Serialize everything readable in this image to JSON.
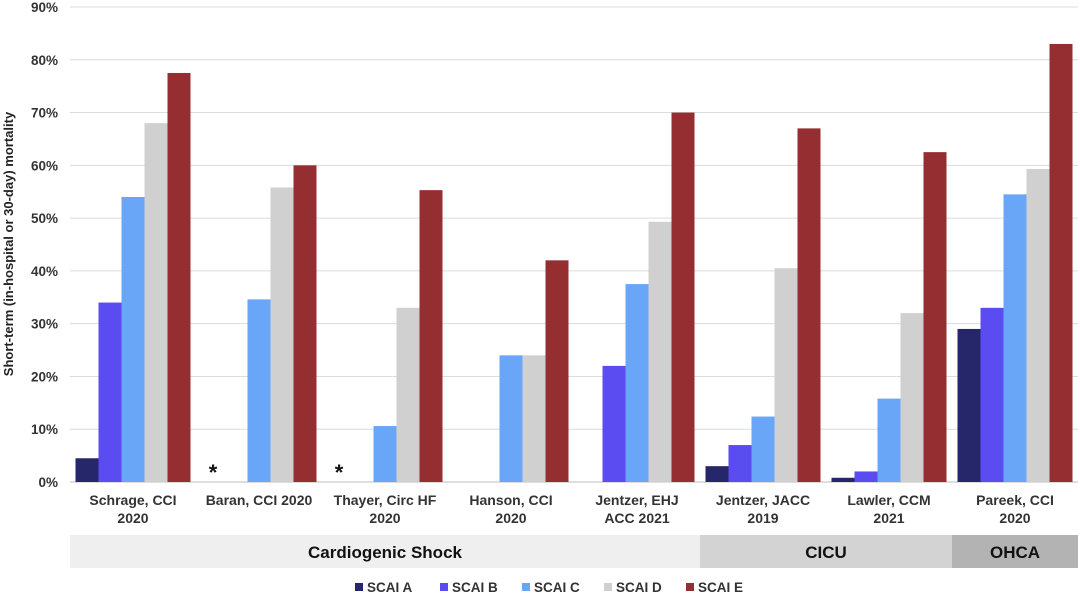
{
  "chart_data": {
    "type": "bar",
    "ylabel": "Short-term (in-hospital or 30-day) mortality",
    "ylim": [
      0,
      90
    ],
    "yticks": [
      "0%",
      "10%",
      "20%",
      "30%",
      "40%",
      "50%",
      "60%",
      "70%",
      "80%",
      "90%"
    ],
    "grid": true,
    "legend_position": "bottom",
    "categories": [
      [
        "Schrage, CCI",
        "2020"
      ],
      [
        "Baran, CCI 2020"
      ],
      [
        "Thayer, Circ HF",
        "2020"
      ],
      [
        "Hanson, CCI",
        "2020"
      ],
      [
        "Jentzer, EHJ",
        "ACC 2021"
      ],
      [
        "Jentzer, JACC",
        "2019"
      ],
      [
        "Lawler, CCM",
        "2021"
      ],
      [
        "Pareek, CCI",
        "2020"
      ]
    ],
    "series": [
      {
        "name": "SCAI A",
        "color": "#26266b",
        "values": [
          4.5,
          null,
          null,
          null,
          null,
          3.0,
          0.8,
          29.0
        ]
      },
      {
        "name": "SCAI B",
        "color": "#5a4cf0",
        "values": [
          34.0,
          null,
          null,
          null,
          22.0,
          7.0,
          2.0,
          33.0
        ]
      },
      {
        "name": "SCAI C",
        "color": "#6aa6f8",
        "values": [
          54.0,
          34.6,
          10.6,
          24.0,
          37.5,
          12.4,
          15.8,
          54.5
        ]
      },
      {
        "name": "SCAI D",
        "color": "#d0d0d0",
        "values": [
          68.0,
          55.8,
          33.0,
          24.0,
          49.3,
          40.5,
          32.0,
          59.3
        ]
      },
      {
        "name": "SCAI E",
        "color": "#952e30",
        "values": [
          77.5,
          60.0,
          55.3,
          42.0,
          70.0,
          67.0,
          62.5,
          83.0
        ]
      }
    ],
    "annotations": [
      {
        "text": "*",
        "category_index": 1
      },
      {
        "text": "*",
        "category_index": 2
      }
    ],
    "groups": [
      {
        "label": "Cardiogenic Shock",
        "from": 0,
        "to": 4,
        "color": "#efefef"
      },
      {
        "label": "CICU",
        "from": 5,
        "to": 6,
        "color": "#d3d3d3"
      },
      {
        "label": "OHCA",
        "from": 7,
        "to": 7,
        "color": "#b3b3b3"
      }
    ]
  }
}
